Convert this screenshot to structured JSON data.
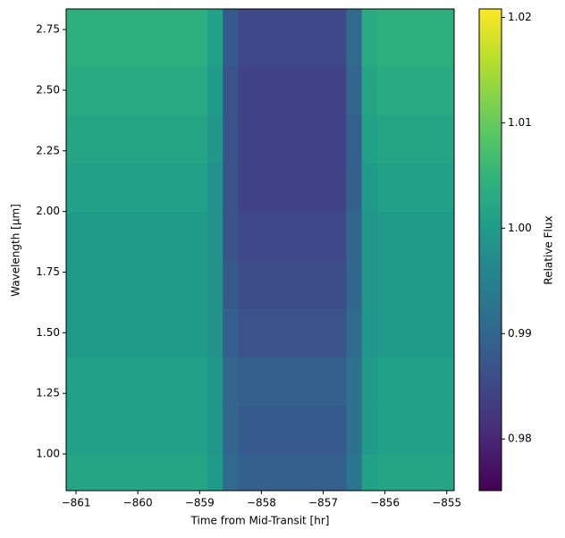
{
  "chart_data": {
    "type": "heatmap",
    "colormap": "viridis",
    "xlabel": "Time from Mid-Transit [hr]",
    "ylabel": "Wavelength [μm]",
    "colorbar_label": "Relative Flux",
    "xlim": [
      -861.16,
      -854.88
    ],
    "xticks": [
      {
        "value": -861,
        "label": "−861"
      },
      {
        "value": -860,
        "label": "−860"
      },
      {
        "value": -859,
        "label": "−859"
      },
      {
        "value": -858,
        "label": "−858"
      },
      {
        "value": -857,
        "label": "−857"
      },
      {
        "value": -856,
        "label": "−856"
      },
      {
        "value": -855,
        "label": "−855"
      }
    ],
    "ylim": [
      0.849,
      2.835
    ],
    "yticks": [
      {
        "value": 1,
        "label": "1.00"
      },
      1.25,
      {
        "value": 1.5,
        "label": "1.50"
      },
      1.75,
      {
        "value": 2,
        "label": "2.00"
      },
      2.25,
      {
        "value": 2.5,
        "label": "2.50"
      },
      2.75
    ],
    "zlim": [
      0.9751,
      1.0208
    ],
    "zticks": [
      0.98,
      0.99,
      {
        "value": 1,
        "label": "1.00"
      },
      1.01,
      1.02
    ],
    "xbins": [
      -861.16,
      -860.875,
      -860.625,
      -860.375,
      -860.125,
      -859.875,
      -859.625,
      -859.375,
      -859.125,
      -858.875,
      -858.625,
      -858.375,
      -858.125,
      -857.875,
      -857.625,
      -857.375,
      -857.125,
      -856.875,
      -856.625,
      -856.375,
      -856.125,
      -855.875,
      -855.625,
      -855.375,
      -855.125,
      -854.88
    ],
    "ybins": [
      0.849,
      1.0,
      1.2,
      1.4,
      1.6,
      1.8,
      2.0,
      2.2,
      2.4,
      2.6,
      2.835
    ],
    "values": [
      [
        1.002,
        1.002,
        1.002,
        1.002,
        1.002,
        1.002,
        1.002,
        1.002,
        1.002,
        1.0,
        0.991,
        0.989,
        0.989,
        0.989,
        0.989,
        0.989,
        0.989,
        0.989,
        0.993,
        1.001,
        1.002,
        1.002,
        1.002,
        1.002,
        1.002
      ],
      [
        1.001,
        1.001,
        1.001,
        1.001,
        1.001,
        1.001,
        1.001,
        1.001,
        1.001,
        0.999,
        0.99,
        0.988,
        0.988,
        0.988,
        0.988,
        0.988,
        0.988,
        0.988,
        0.992,
        1.0,
        1.001,
        1.001,
        1.001,
        1.001,
        1.001
      ],
      [
        1.001,
        1.001,
        1.001,
        1.001,
        1.001,
        1.001,
        1.001,
        1.001,
        1.001,
        0.999,
        0.99,
        0.989,
        0.989,
        0.989,
        0.989,
        0.989,
        0.989,
        0.989,
        0.992,
        1.0,
        1.001,
        1.001,
        1.001,
        1.001,
        1.001
      ],
      [
        1.0,
        1.0,
        1.0,
        1.0,
        1.0,
        1.0,
        1.0,
        1.0,
        1.0,
        0.998,
        0.989,
        0.987,
        0.987,
        0.987,
        0.987,
        0.987,
        0.987,
        0.987,
        0.991,
        0.999,
        1.0,
        1.0,
        1.0,
        1.0,
        1.0
      ],
      [
        1.0,
        1.0,
        1.0,
        1.0,
        1.0,
        1.0,
        1.0,
        1.0,
        1.0,
        0.998,
        0.988,
        0.986,
        0.986,
        0.986,
        0.986,
        0.986,
        0.986,
        0.986,
        0.99,
        0.999,
        1.0,
        1.0,
        1.0,
        1.0,
        1.0
      ],
      [
        1.0,
        1.0,
        1.0,
        1.0,
        1.0,
        1.0,
        1.0,
        1.0,
        1.0,
        0.998,
        0.987,
        0.985,
        0.985,
        0.985,
        0.985,
        0.985,
        0.985,
        0.985,
        0.99,
        0.999,
        1.0,
        1.0,
        1.0,
        1.0,
        1.0
      ],
      [
        1.001,
        1.001,
        1.001,
        1.001,
        1.001,
        1.001,
        1.001,
        1.001,
        1.001,
        0.998,
        0.987,
        0.984,
        0.984,
        0.984,
        0.984,
        0.984,
        0.984,
        0.984,
        0.989,
        1.0,
        1.001,
        1.001,
        1.001,
        1.001,
        1.001
      ],
      [
        1.002,
        1.002,
        1.002,
        1.002,
        1.002,
        1.002,
        1.002,
        1.002,
        1.002,
        0.999,
        0.987,
        0.984,
        0.984,
        0.984,
        0.984,
        0.984,
        0.984,
        0.984,
        0.989,
        1.001,
        1.002,
        1.002,
        1.002,
        1.002,
        1.002
      ],
      [
        1.003,
        1.003,
        1.003,
        1.003,
        1.003,
        1.003,
        1.003,
        1.003,
        1.003,
        1.0,
        0.987,
        0.984,
        0.984,
        0.984,
        0.984,
        0.984,
        0.984,
        0.984,
        0.99,
        1.002,
        1.003,
        1.003,
        1.003,
        1.003,
        1.003
      ],
      [
        1.004,
        1.004,
        1.004,
        1.004,
        1.004,
        1.004,
        1.004,
        1.004,
        1.004,
        1.001,
        0.988,
        0.985,
        0.985,
        0.985,
        0.985,
        0.985,
        0.985,
        0.985,
        0.991,
        1.003,
        1.004,
        1.004,
        1.004,
        1.004,
        1.004
      ]
    ]
  }
}
